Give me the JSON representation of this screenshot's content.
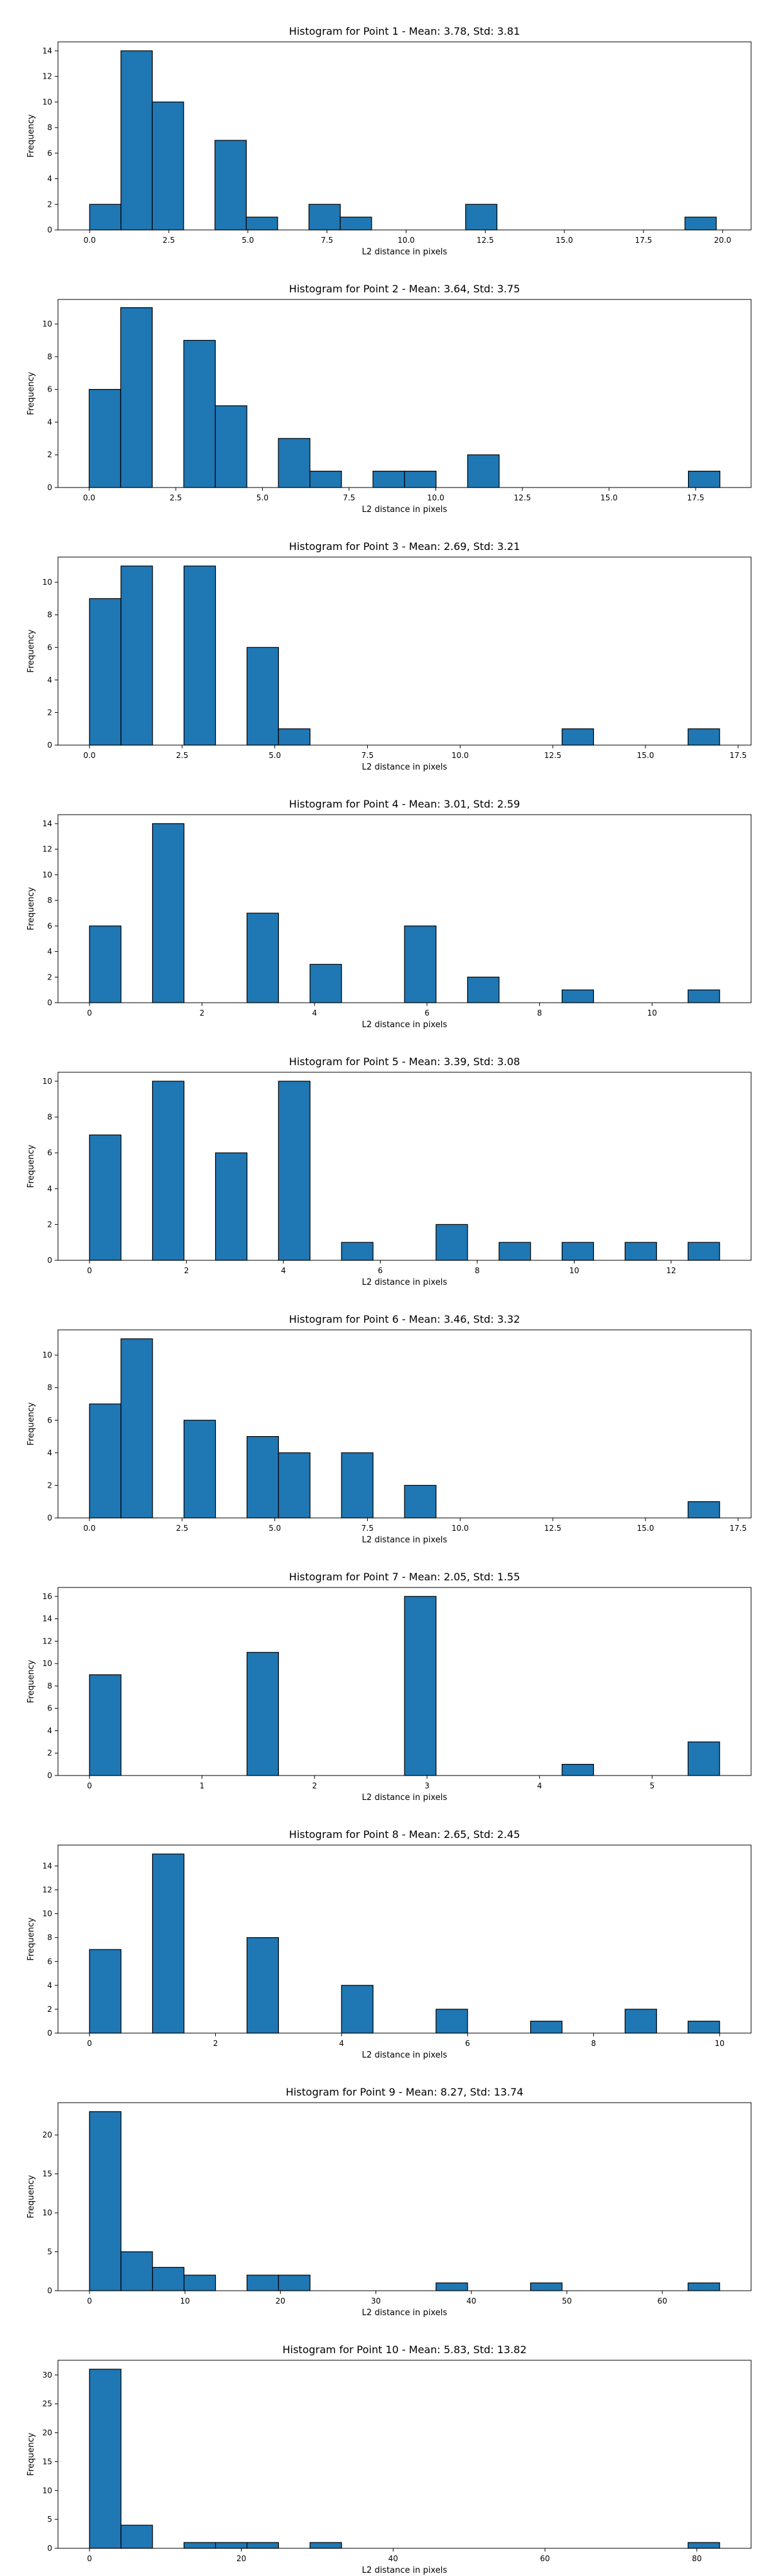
{
  "chart_data": [
    {
      "type": "bar",
      "title": "Histogram for Point 1 - Mean: 3.78, Std: 3.81",
      "xlabel": "L2 distance in pixels",
      "ylabel": "Frequency",
      "xlim": [
        -1.0,
        20.9
      ],
      "ylim": [
        0,
        14.7
      ],
      "xticks": [
        0.0,
        2.5,
        5.0,
        7.5,
        10.0,
        12.5,
        15.0,
        17.5,
        20.0
      ],
      "xtick_labels": [
        "0.0",
        "2.5",
        "5.0",
        "7.5",
        "10.0",
        "12.5",
        "15.0",
        "17.5",
        "20.0"
      ],
      "yticks": [
        0,
        2,
        4,
        6,
        8,
        10,
        12,
        14
      ],
      "bins": [
        {
          "x0": 0.0,
          "x1": 0.99,
          "count": 2
        },
        {
          "x0": 0.99,
          "x1": 1.98,
          "count": 14
        },
        {
          "x0": 1.98,
          "x1": 2.97,
          "count": 10
        },
        {
          "x0": 3.96,
          "x1": 4.95,
          "count": 7
        },
        {
          "x0": 4.95,
          "x1": 5.94,
          "count": 1
        },
        {
          "x0": 6.93,
          "x1": 7.92,
          "count": 2
        },
        {
          "x0": 7.92,
          "x1": 8.91,
          "count": 1
        },
        {
          "x0": 11.88,
          "x1": 12.87,
          "count": 2
        },
        {
          "x0": 18.81,
          "x1": 19.8,
          "count": 1
        }
      ]
    },
    {
      "type": "bar",
      "title": "Histogram for Point 2 - Mean: 3.64, Std: 3.75",
      "xlabel": "L2 distance in pixels",
      "ylabel": "Frequency",
      "xlim": [
        -0.9,
        19.1
      ],
      "ylim": [
        0,
        11.5
      ],
      "xticks": [
        0.0,
        2.5,
        5.0,
        7.5,
        10.0,
        12.5,
        15.0,
        17.5
      ],
      "xtick_labels": [
        "0.0",
        "2.5",
        "5.0",
        "7.5",
        "10.0",
        "12.5",
        "15.0",
        "17.5"
      ],
      "yticks": [
        0,
        2,
        4,
        6,
        8,
        10
      ],
      "bins": [
        {
          "x0": 0.0,
          "x1": 0.91,
          "count": 6
        },
        {
          "x0": 0.91,
          "x1": 1.82,
          "count": 11
        },
        {
          "x0": 2.73,
          "x1": 3.64,
          "count": 9
        },
        {
          "x0": 3.64,
          "x1": 4.55,
          "count": 5
        },
        {
          "x0": 5.46,
          "x1": 6.37,
          "count": 3
        },
        {
          "x0": 6.37,
          "x1": 7.28,
          "count": 1
        },
        {
          "x0": 8.19,
          "x1": 9.1,
          "count": 1
        },
        {
          "x0": 9.1,
          "x1": 10.01,
          "count": 1
        },
        {
          "x0": 10.92,
          "x1": 11.83,
          "count": 2
        },
        {
          "x0": 17.29,
          "x1": 18.2,
          "count": 1
        }
      ]
    },
    {
      "type": "bar",
      "title": "Histogram for Point 3 - Mean: 2.69, Std: 3.21",
      "xlabel": "L2 distance in pixels",
      "ylabel": "Frequency",
      "xlim": [
        -0.85,
        17.85
      ],
      "ylim": [
        0,
        11.55
      ],
      "xticks": [
        0.0,
        2.5,
        5.0,
        7.5,
        10.0,
        12.5,
        15.0,
        17.5
      ],
      "xtick_labels": [
        "0.0",
        "2.5",
        "5.0",
        "7.5",
        "10.0",
        "12.5",
        "15.0",
        "17.5"
      ],
      "yticks": [
        0,
        2,
        4,
        6,
        8,
        10
      ],
      "bins": [
        {
          "x0": 0.0,
          "x1": 0.85,
          "count": 9
        },
        {
          "x0": 0.85,
          "x1": 1.7,
          "count": 11
        },
        {
          "x0": 2.55,
          "x1": 3.4,
          "count": 11
        },
        {
          "x0": 4.25,
          "x1": 5.1,
          "count": 6
        },
        {
          "x0": 5.1,
          "x1": 5.95,
          "count": 1
        },
        {
          "x0": 12.75,
          "x1": 13.6,
          "count": 1
        },
        {
          "x0": 16.15,
          "x1": 17.0,
          "count": 1
        }
      ]
    },
    {
      "type": "bar",
      "title": "Histogram for Point 4 - Mean: 3.01, Std: 2.59",
      "xlabel": "L2 distance in pixels",
      "ylabel": "Frequency",
      "xlim": [
        -0.56,
        11.76
      ],
      "ylim": [
        0,
        14.7
      ],
      "xticks": [
        0,
        2,
        4,
        6,
        8,
        10
      ],
      "xtick_labels": [
        "0",
        "2",
        "4",
        "6",
        "8",
        "10"
      ],
      "yticks": [
        0,
        2,
        4,
        6,
        8,
        10,
        12,
        14
      ],
      "bins": [
        {
          "x0": 0.0,
          "x1": 0.56,
          "count": 6
        },
        {
          "x0": 1.12,
          "x1": 1.68,
          "count": 14
        },
        {
          "x0": 2.8,
          "x1": 3.36,
          "count": 7
        },
        {
          "x0": 3.92,
          "x1": 4.48,
          "count": 3
        },
        {
          "x0": 5.6,
          "x1": 6.16,
          "count": 6
        },
        {
          "x0": 6.72,
          "x1": 7.28,
          "count": 2
        },
        {
          "x0": 8.4,
          "x1": 8.96,
          "count": 1
        },
        {
          "x0": 10.64,
          "x1": 11.2,
          "count": 1
        }
      ]
    },
    {
      "type": "bar",
      "title": "Histogram for Point 5 - Mean: 3.39, Std: 3.08",
      "xlabel": "L2 distance in pixels",
      "ylabel": "Frequency",
      "xlim": [
        -0.65,
        13.65
      ],
      "ylim": [
        0,
        10.5
      ],
      "xticks": [
        0,
        2,
        4,
        6,
        8,
        10,
        12
      ],
      "xtick_labels": [
        "0",
        "2",
        "4",
        "6",
        "8",
        "10",
        "12"
      ],
      "yticks": [
        0,
        2,
        4,
        6,
        8,
        10
      ],
      "bins": [
        {
          "x0": 0.0,
          "x1": 0.65,
          "count": 7
        },
        {
          "x0": 1.3,
          "x1": 1.95,
          "count": 10
        },
        {
          "x0": 2.6,
          "x1": 3.25,
          "count": 6
        },
        {
          "x0": 3.9,
          "x1": 4.55,
          "count": 10
        },
        {
          "x0": 5.2,
          "x1": 5.85,
          "count": 1
        },
        {
          "x0": 7.15,
          "x1": 7.8,
          "count": 2
        },
        {
          "x0": 8.45,
          "x1": 9.1,
          "count": 1
        },
        {
          "x0": 9.75,
          "x1": 10.4,
          "count": 1
        },
        {
          "x0": 11.05,
          "x1": 11.7,
          "count": 1
        },
        {
          "x0": 12.35,
          "x1": 13.0,
          "count": 1
        }
      ]
    },
    {
      "type": "bar",
      "title": "Histogram for Point 6 - Mean: 3.46, Std: 3.32",
      "xlabel": "L2 distance in pixels",
      "ylabel": "Frequency",
      "xlim": [
        -0.85,
        17.85
      ],
      "ylim": [
        0,
        11.55
      ],
      "xticks": [
        0.0,
        2.5,
        5.0,
        7.5,
        10.0,
        12.5,
        15.0,
        17.5
      ],
      "xtick_labels": [
        "0.0",
        "2.5",
        "5.0",
        "7.5",
        "10.0",
        "12.5",
        "15.0",
        "17.5"
      ],
      "yticks": [
        0,
        2,
        4,
        6,
        8,
        10
      ],
      "bins": [
        {
          "x0": 0.0,
          "x1": 0.85,
          "count": 7
        },
        {
          "x0": 0.85,
          "x1": 1.7,
          "count": 11
        },
        {
          "x0": 2.55,
          "x1": 3.4,
          "count": 6
        },
        {
          "x0": 4.25,
          "x1": 5.1,
          "count": 5
        },
        {
          "x0": 5.1,
          "x1": 5.95,
          "count": 4
        },
        {
          "x0": 6.8,
          "x1": 7.65,
          "count": 4
        },
        {
          "x0": 8.5,
          "x1": 9.35,
          "count": 2
        },
        {
          "x0": 16.15,
          "x1": 17.0,
          "count": 1
        }
      ]
    },
    {
      "type": "bar",
      "title": "Histogram for Point 7 - Mean: 2.05, Std: 1.55",
      "xlabel": "L2 distance in pixels",
      "ylabel": "Frequency",
      "xlim": [
        -0.28,
        5.88
      ],
      "ylim": [
        0,
        16.8
      ],
      "xticks": [
        0,
        1,
        2,
        3,
        4,
        5
      ],
      "xtick_labels": [
        "0",
        "1",
        "2",
        "3",
        "4",
        "5"
      ],
      "yticks": [
        0,
        2,
        4,
        6,
        8,
        10,
        12,
        14,
        16
      ],
      "bins": [
        {
          "x0": 0.0,
          "x1": 0.28,
          "count": 9
        },
        {
          "x0": 1.4,
          "x1": 1.68,
          "count": 11
        },
        {
          "x0": 2.8,
          "x1": 3.08,
          "count": 16
        },
        {
          "x0": 4.2,
          "x1": 4.48,
          "count": 1
        },
        {
          "x0": 5.32,
          "x1": 5.6,
          "count": 3
        }
      ]
    },
    {
      "type": "bar",
      "title": "Histogram for Point 8 - Mean: 2.65, Std: 2.45",
      "xlabel": "L2 distance in pixels",
      "ylabel": "Frequency",
      "xlim": [
        -0.5,
        10.5
      ],
      "ylim": [
        0,
        15.75
      ],
      "xticks": [
        0,
        2,
        4,
        6,
        8,
        10
      ],
      "xtick_labels": [
        "0",
        "2",
        "4",
        "6",
        "8",
        "10"
      ],
      "yticks": [
        0,
        2,
        4,
        6,
        8,
        10,
        12,
        14
      ],
      "bins": [
        {
          "x0": 0.0,
          "x1": 0.5,
          "count": 7
        },
        {
          "x0": 1.0,
          "x1": 1.5,
          "count": 15
        },
        {
          "x0": 2.5,
          "x1": 3.0,
          "count": 8
        },
        {
          "x0": 4.0,
          "x1": 4.5,
          "count": 4
        },
        {
          "x0": 5.5,
          "x1": 6.0,
          "count": 2
        },
        {
          "x0": 7.0,
          "x1": 7.5,
          "count": 1
        },
        {
          "x0": 8.5,
          "x1": 9.0,
          "count": 2
        },
        {
          "x0": 9.5,
          "x1": 10.0,
          "count": 1
        }
      ]
    },
    {
      "type": "bar",
      "title": "Histogram for Point 9 - Mean: 8.27, Std: 13.74",
      "xlabel": "L2 distance in pixels",
      "ylabel": "Frequency",
      "xlim": [
        -3.3,
        69.3
      ],
      "ylim": [
        0,
        24.15
      ],
      "xticks": [
        0,
        10,
        20,
        30,
        40,
        50,
        60
      ],
      "xtick_labels": [
        "0",
        "10",
        "20",
        "30",
        "40",
        "50",
        "60"
      ],
      "yticks": [
        0,
        5,
        10,
        15,
        20
      ],
      "bins": [
        {
          "x0": 0.0,
          "x1": 3.3,
          "count": 23
        },
        {
          "x0": 3.3,
          "x1": 6.6,
          "count": 5
        },
        {
          "x0": 6.6,
          "x1": 9.9,
          "count": 3
        },
        {
          "x0": 9.9,
          "x1": 13.2,
          "count": 2
        },
        {
          "x0": 16.5,
          "x1": 19.8,
          "count": 2
        },
        {
          "x0": 19.8,
          "x1": 23.1,
          "count": 2
        },
        {
          "x0": 36.3,
          "x1": 39.6,
          "count": 1
        },
        {
          "x0": 46.2,
          "x1": 49.5,
          "count": 1
        },
        {
          "x0": 62.7,
          "x1": 66.0,
          "count": 1
        }
      ]
    },
    {
      "type": "bar",
      "title": "Histogram for Point 10 - Mean: 5.83, Std: 13.82",
      "xlabel": "L2 distance in pixels",
      "ylabel": "Frequency",
      "xlim": [
        -4.15,
        87.15
      ],
      "ylim": [
        0,
        32.55
      ],
      "xticks": [
        0,
        20,
        40,
        60,
        80
      ],
      "xtick_labels": [
        "0",
        "20",
        "40",
        "60",
        "80"
      ],
      "yticks": [
        0,
        5,
        10,
        15,
        20,
        25,
        30
      ],
      "bins": [
        {
          "x0": 0.0,
          "x1": 4.15,
          "count": 31
        },
        {
          "x0": 4.15,
          "x1": 8.3,
          "count": 4
        },
        {
          "x0": 12.45,
          "x1": 16.6,
          "count": 1
        },
        {
          "x0": 16.6,
          "x1": 20.75,
          "count": 1
        },
        {
          "x0": 20.75,
          "x1": 24.9,
          "count": 1
        },
        {
          "x0": 29.05,
          "x1": 33.2,
          "count": 1
        },
        {
          "x0": 78.85,
          "x1": 83.0,
          "count": 1
        }
      ]
    }
  ],
  "colors": {
    "bar_fill": "#1f77b4",
    "bar_edge": "#000000",
    "axes": "#000000",
    "background": "#ffffff"
  }
}
